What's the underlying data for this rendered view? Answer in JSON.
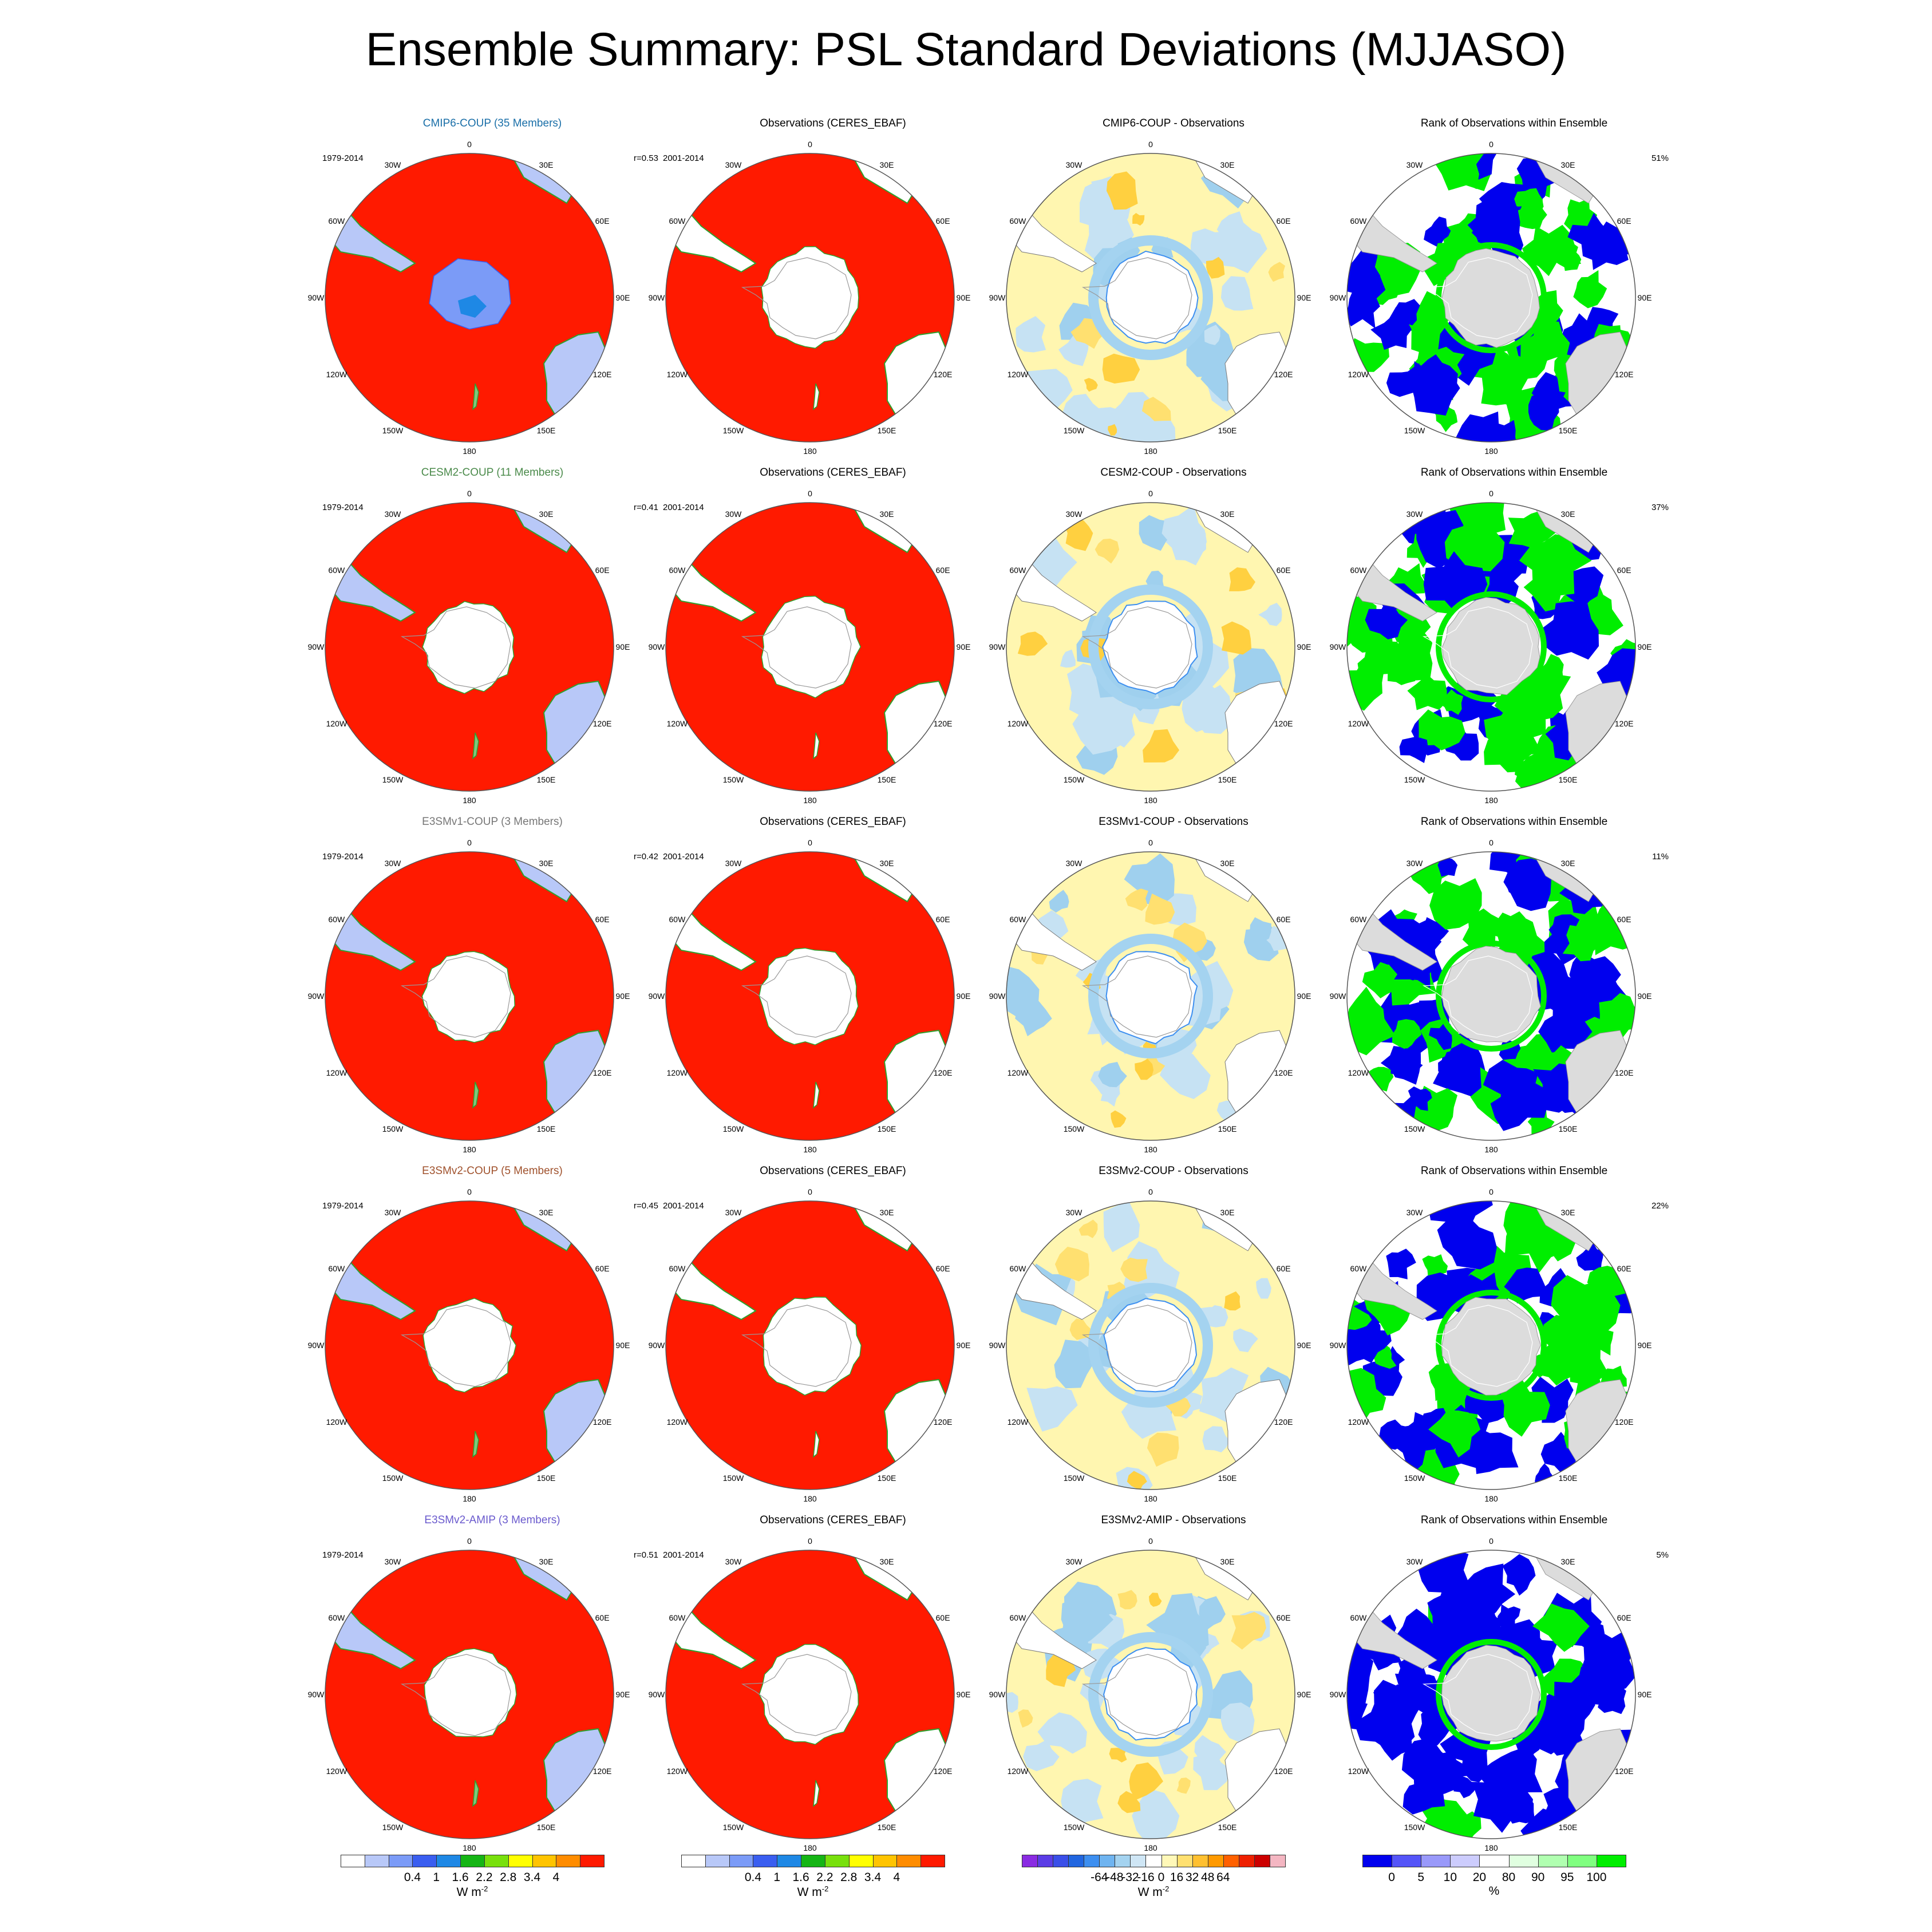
{
  "title": "Ensemble Summary: PSL Standard Deviations (MJJASO)",
  "colors": {
    "std": [
      "#ffffff",
      "#b8c8f8",
      "#7b9bf7",
      "#3a5ef0",
      "#1e88e5",
      "#15b515",
      "#78e00c",
      "#ffff00",
      "#ffc400",
      "#ff8c00",
      "#ff1a00"
    ],
    "diff": [
      "#8a2be2",
      "#5b3de6",
      "#3a4fe8",
      "#2166e0",
      "#3d8ff0",
      "#6fb4f0",
      "#a4d3f0",
      "#cfe6f5",
      "#ffffff",
      "#fff8b8",
      "#ffe070",
      "#ffc030",
      "#ff9a00",
      "#ff6000",
      "#ee2000",
      "#cc0000",
      "#f4b6c2"
    ],
    "rank": [
      "#0000ee",
      "#5555f8",
      "#9999fa",
      "#ccccfd",
      "#ffffff",
      "#e0ffe0",
      "#b0ffb0",
      "#80ff80",
      "#00ee00"
    ],
    "land": "#dcdcdc",
    "model_title_colors": [
      "#1a6fa8",
      "#4a8a4a",
      "#777777",
      "#a0522d",
      "#6a5acd"
    ]
  },
  "map_labels": {
    "lon": [
      "0",
      "30E",
      "60E",
      "90E",
      "120E",
      "150E",
      "180",
      "150W",
      "120W",
      "90W",
      "60W",
      "30W"
    ]
  },
  "rows": [
    {
      "model": "CMIP6-COUP (35 Members)",
      "period": "1979-2014",
      "r": "r=0.53",
      "obs_title": "Observations (CERES_EBAF)",
      "obs_period": "2001-2014",
      "diff_title": "CMIP6-COUP - Observations",
      "rank_title": "Rank of Observations within Ensemble",
      "rank_pct": "51%"
    },
    {
      "model": "CESM2-COUP (11 Members)",
      "period": "1979-2014",
      "r": "r=0.41",
      "obs_title": "Observations (CERES_EBAF)",
      "obs_period": "2001-2014",
      "diff_title": "CESM2-COUP - Observations",
      "rank_title": "Rank of Observations within Ensemble",
      "rank_pct": "37%"
    },
    {
      "model": "E3SMv1-COUP (3 Members)",
      "period": "1979-2014",
      "r": "r=0.42",
      "obs_title": "Observations (CERES_EBAF)",
      "obs_period": "2001-2014",
      "diff_title": "E3SMv1-COUP - Observations",
      "rank_title": "Rank of Observations within Ensemble",
      "rank_pct": "11%"
    },
    {
      "model": "E3SMv2-COUP (5 Members)",
      "period": "1979-2014",
      "r": "r=0.45",
      "obs_title": "Observations (CERES_EBAF)",
      "obs_period": "2001-2014",
      "diff_title": "E3SMv2-COUP - Observations",
      "rank_title": "Rank of Observations within Ensemble",
      "rank_pct": "22%"
    },
    {
      "model": "E3SMv2-AMIP (3 Members)",
      "period": "1979-2014",
      "r": "r=0.51",
      "obs_title": "Observations (CERES_EBAF)",
      "obs_period": "2001-2014",
      "diff_title": "E3SMv2-AMIP - Observations",
      "rank_title": "Rank of Observations within Ensemble",
      "rank_pct": "5%"
    }
  ],
  "colorbars": {
    "std": {
      "ticks": [
        "0.4",
        "1",
        "1.6",
        "2.2",
        "2.8",
        "3.4",
        "4"
      ],
      "units": "W m",
      "units_sup": "-2"
    },
    "diff": {
      "ticks": [
        "-64",
        "-48",
        "-32",
        "-16",
        "0",
        "16",
        "32",
        "48",
        "64"
      ],
      "units": "W m",
      "units_sup": "-2"
    },
    "rank": {
      "ticks": [
        "0",
        "5",
        "10",
        "20",
        "80",
        "90",
        "95",
        "100"
      ],
      "units": "%"
    }
  },
  "chart_data": {
    "type": "heatmap",
    "title": "Ensemble Summary: PSL Standard Deviations (MJJASO)",
    "projection": "south polar stereographic",
    "columns": [
      "ensemble mean standard deviation",
      "observations",
      "ensemble minus observations",
      "rank of observations within ensemble"
    ],
    "std_levels": [
      0.4,
      1,
      1.6,
      2.2,
      2.8,
      3.4,
      4
    ],
    "diff_levels": [
      -64,
      -48,
      -32,
      -16,
      0,
      16,
      32,
      48,
      64
    ],
    "rank_levels": [
      0,
      5,
      10,
      20,
      80,
      90,
      95,
      100
    ],
    "series": [
      {
        "name": "CMIP6-COUP (35 Members)",
        "pattern_correlation": 0.53,
        "rank_percent": 51
      },
      {
        "name": "CESM2-COUP (11 Members)",
        "pattern_correlation": 0.41,
        "rank_percent": 37
      },
      {
        "name": "E3SMv1-COUP (3 Members)",
        "pattern_correlation": 0.42,
        "rank_percent": 11
      },
      {
        "name": "E3SMv2-COUP (5 Members)",
        "pattern_correlation": 0.45,
        "rank_percent": 22
      },
      {
        "name": "E3SMv2-AMIP (3 Members)",
        "pattern_correlation": 0.51,
        "rank_percent": 5
      }
    ]
  }
}
